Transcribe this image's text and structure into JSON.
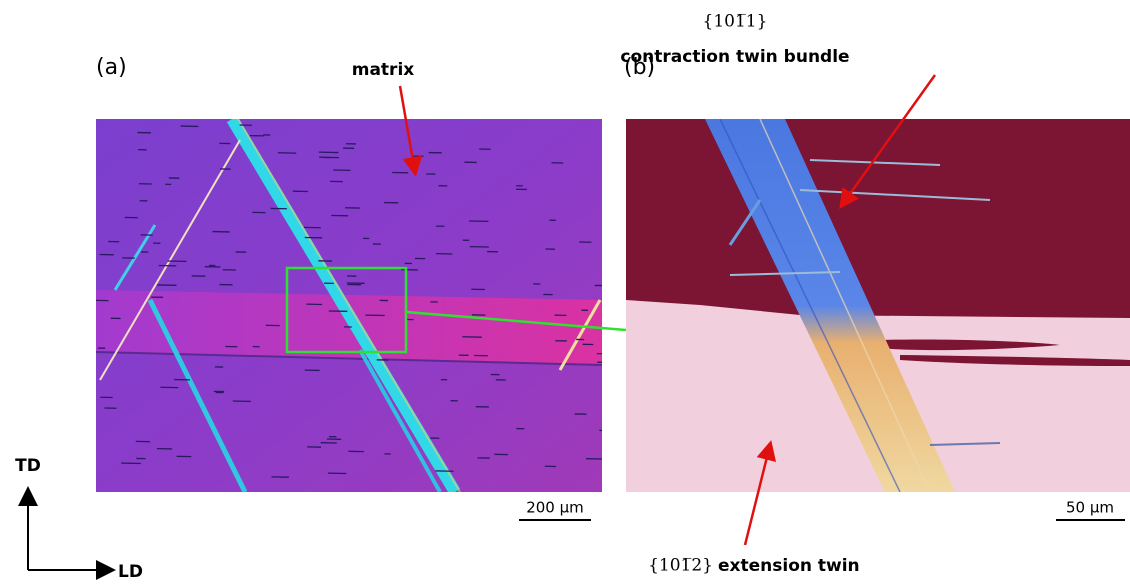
{
  "panel_a": {
    "label": "(a)",
    "annotation": "matrix",
    "scale_bar": "200 μm"
  },
  "panel_b": {
    "label": "(b)",
    "contraction_notation": "{101̅1}",
    "contraction_label": "contraction twin bundle",
    "extension_notation": "{101̅2}",
    "extension_label": "extension twin",
    "scale_bar": "50 μm"
  },
  "axes": {
    "vertical": "TD",
    "horizontal": "LD"
  }
}
